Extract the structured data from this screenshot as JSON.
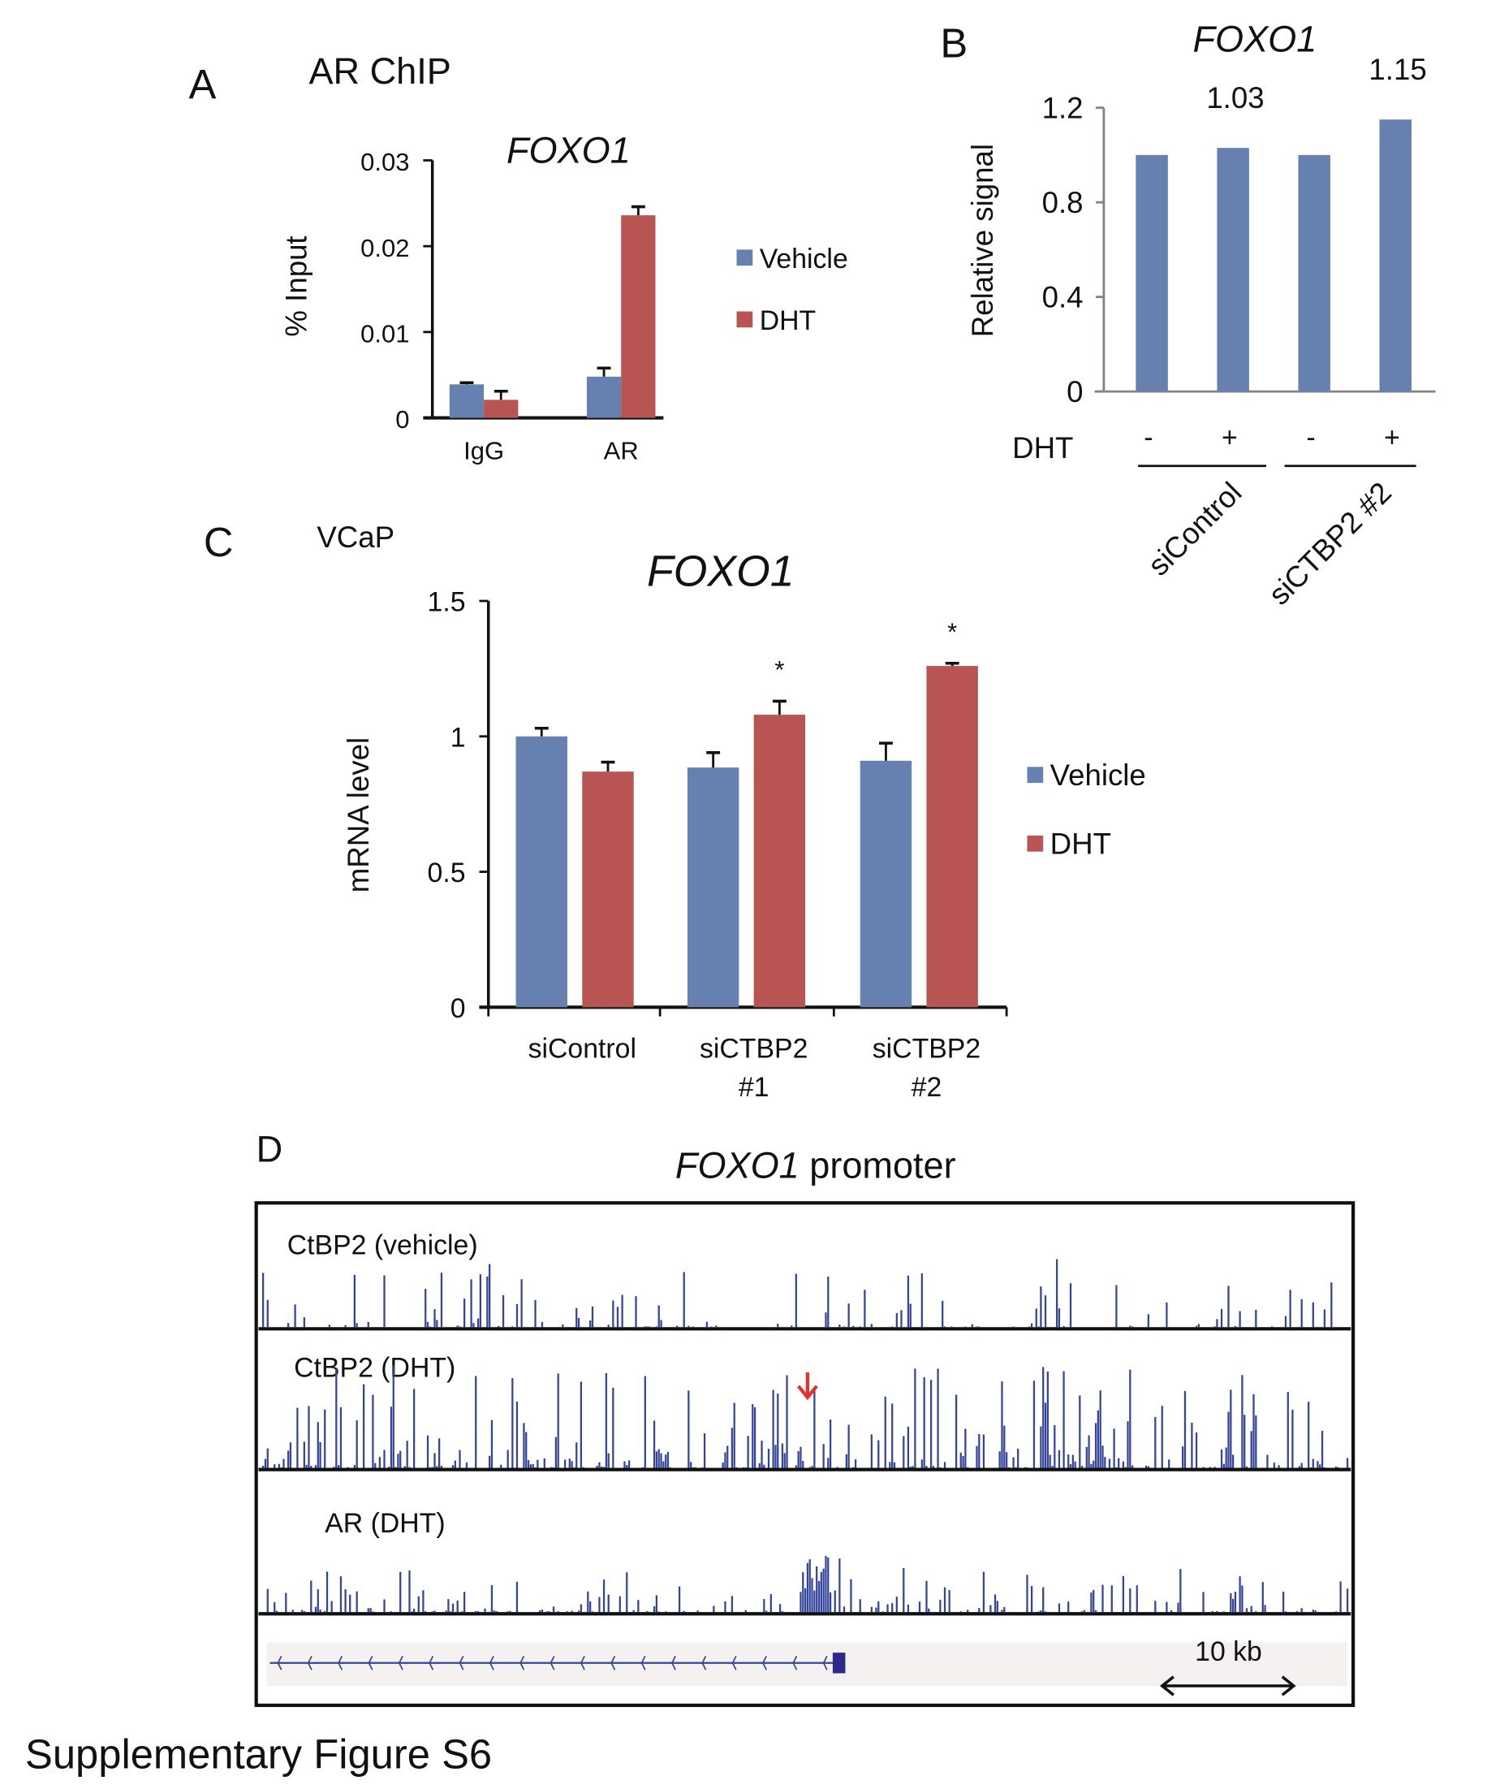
{
  "footer": "Supplementary Figure S6",
  "colors": {
    "vehicle": "#6680b0",
    "dht": "#b85452",
    "track": "#34449a",
    "arrow": "#e8302a",
    "gene_bg": "#f6f1f1"
  },
  "chart_data": [
    {
      "panel": "A",
      "type": "bar",
      "heading": "AR ChIP",
      "title": "FOXO1",
      "ylabel": "% Input",
      "ylim": [
        0,
        0.03
      ],
      "yticks": [
        "0",
        "0.01",
        "0.02",
        "0.03"
      ],
      "ytick_values": [
        0,
        0.01,
        0.02,
        0.03
      ],
      "categories": [
        "IgG",
        "AR"
      ],
      "series": [
        {
          "name": "Vehicle",
          "values": [
            0.0039,
            0.0048
          ],
          "errors": [
            0.0002,
            0.001
          ]
        },
        {
          "name": "DHT",
          "values": [
            0.0021,
            0.0236
          ],
          "errors": [
            0.001,
            0.001
          ]
        }
      ],
      "legend": "right"
    },
    {
      "panel": "B",
      "type": "bar",
      "title": "FOXO1",
      "ylabel": "Relative signal",
      "ylim": [
        0,
        1.2
      ],
      "yticks": [
        "0",
        "0.4",
        "0.8",
        "1.2"
      ],
      "ytick_values": [
        0,
        0.4,
        0.8,
        1.2
      ],
      "values": [
        1.0,
        1.03,
        1.0,
        1.15
      ],
      "data_labels": [
        "",
        "1.03",
        "",
        "1.15"
      ],
      "row_label": "DHT",
      "dht": [
        "-",
        "+",
        "-",
        "+"
      ],
      "groups": [
        "siControl",
        "siCTBP2 #2"
      ]
    },
    {
      "panel": "C",
      "type": "bar",
      "heading": "VCaP",
      "title": "FOXO1",
      "ylabel": "mRNA level",
      "ylim": [
        0,
        1.5
      ],
      "yticks": [
        "0",
        "0.5",
        "1",
        "1.5"
      ],
      "ytick_values": [
        0,
        0.5,
        1,
        1.5
      ],
      "categories": [
        [
          "siControl",
          ""
        ],
        [
          "siCTBP2",
          "#1"
        ],
        [
          "siCTBP2",
          "#2"
        ]
      ],
      "series": [
        {
          "name": "Vehicle",
          "values": [
            1.0,
            0.885,
            0.91
          ],
          "errors": [
            0.03,
            0.055,
            0.065
          ]
        },
        {
          "name": "DHT",
          "values": [
            0.87,
            1.08,
            1.26
          ],
          "errors": [
            0.035,
            0.05,
            0.01
          ]
        }
      ],
      "significance": [
        "",
        "*",
        "*"
      ],
      "legend": "right"
    }
  ],
  "panel_d": {
    "letter": "D",
    "title_italic": "FOXO1",
    "title_rest": " promoter",
    "tracks": [
      "CtBP2 (vehicle)",
      "CtBP2 (DHT)",
      "AR (DHT)"
    ],
    "scale_label": "10 kb"
  }
}
